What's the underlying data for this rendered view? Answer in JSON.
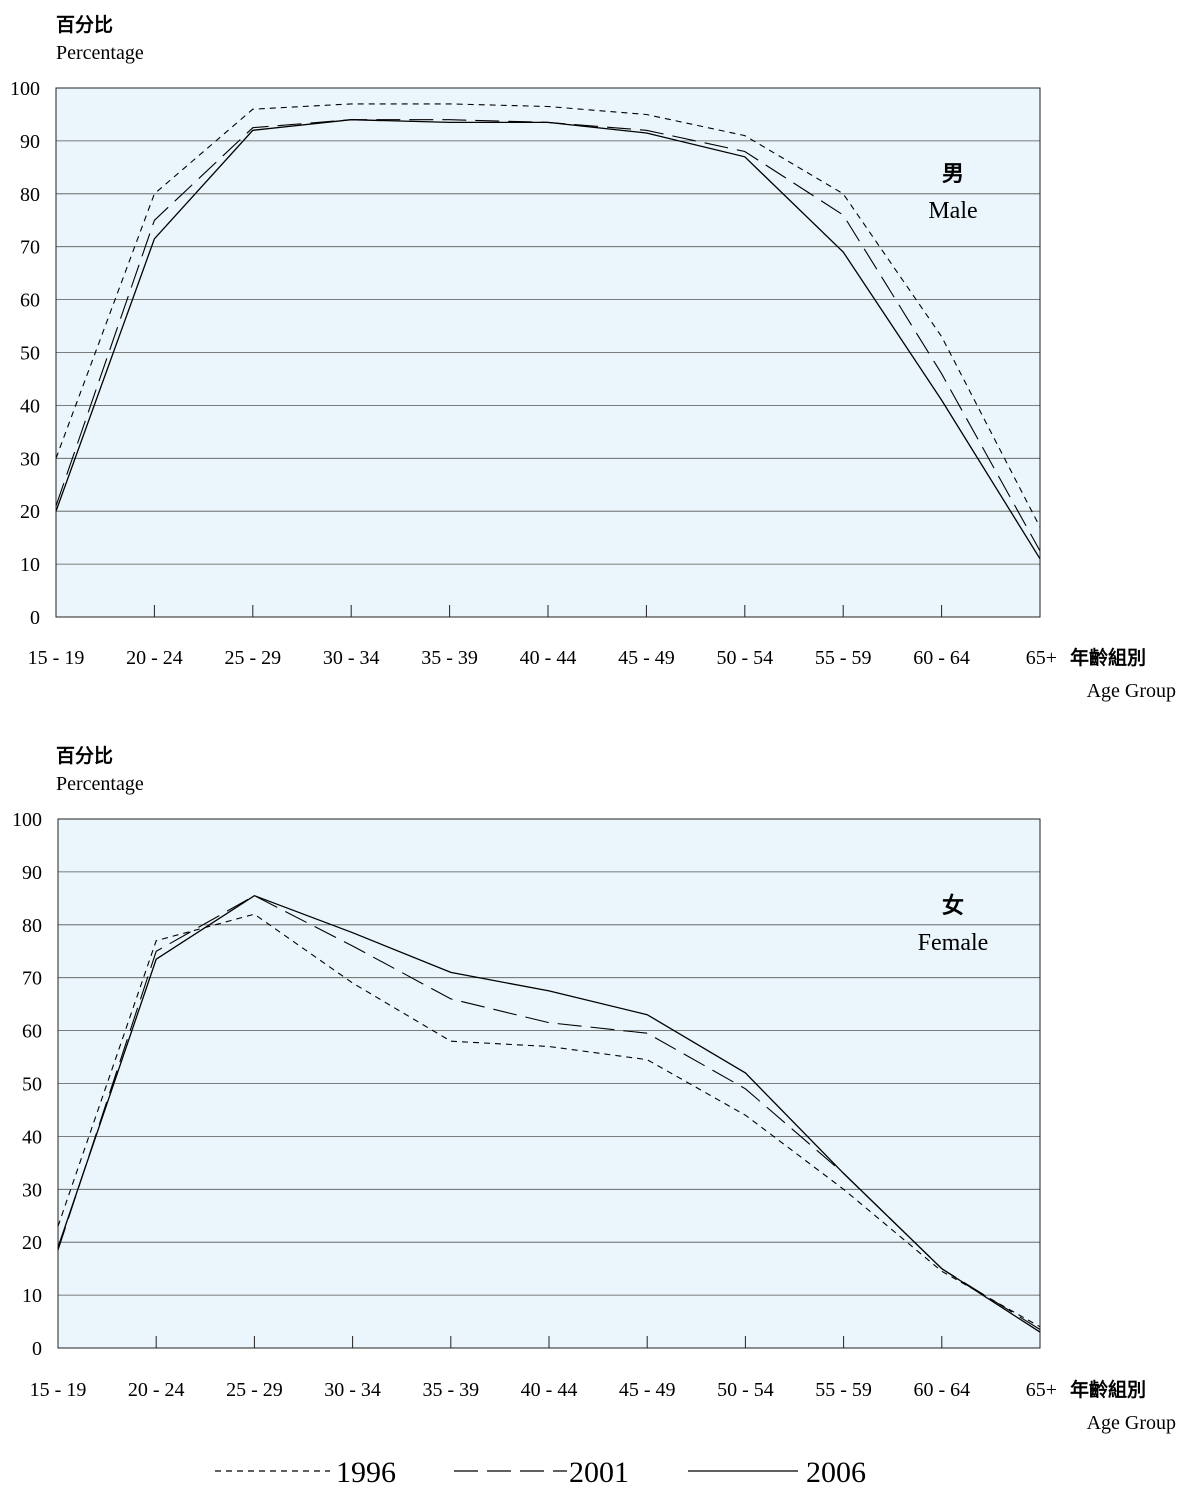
{
  "chart_data": [
    {
      "type": "line",
      "ylabel_zh": "百分比",
      "ylabel_en": "Percentage",
      "xlabel_zh": "年齡組別",
      "xlabel_en": "Age Group",
      "panel_label_zh": "男",
      "panel_label_en": "Male",
      "categories": [
        "15 - 19",
        "20 - 24",
        "25 - 29",
        "30 - 34",
        "35 - 39",
        "40 - 44",
        "45 - 49",
        "50 - 54",
        "55 - 59",
        "60 - 64",
        "65+"
      ],
      "ylim": [
        0,
        100
      ],
      "yticks": [
        "0",
        "10",
        "20",
        "30",
        "40",
        "50",
        "60",
        "70",
        "80",
        "90",
        "100"
      ],
      "grid": true,
      "background": "#eaf6fb",
      "series": [
        {
          "name": "1996",
          "style": "dotted",
          "values": [
            30,
            80,
            96,
            97,
            97,
            96.5,
            95,
            91,
            80,
            53,
            17
          ]
        },
        {
          "name": "2001",
          "style": "dashed",
          "values": [
            21,
            75,
            92.5,
            94,
            94,
            93.5,
            92,
            88,
            76,
            46,
            12.5
          ]
        },
        {
          "name": "2006",
          "style": "solid",
          "values": [
            20,
            71.5,
            92,
            94,
            93.5,
            93.5,
            91.5,
            87,
            69,
            41,
            11
          ]
        }
      ]
    },
    {
      "type": "line",
      "ylabel_zh": "百分比",
      "ylabel_en": "Percentage",
      "xlabel_zh": "年齡組別",
      "xlabel_en": "Age Group",
      "panel_label_zh": "女",
      "panel_label_en": "Female",
      "categories": [
        "15 - 19",
        "20 - 24",
        "25 - 29",
        "30 - 34",
        "35 - 39",
        "40 - 44",
        "45 - 49",
        "50 - 54",
        "55 - 59",
        "60 - 64",
        "65+"
      ],
      "ylim": [
        0,
        100
      ],
      "yticks": [
        "0",
        "10",
        "20",
        "30",
        "40",
        "50",
        "60",
        "70",
        "80",
        "90",
        "100"
      ],
      "grid": true,
      "background": "#eaf6fb",
      "series": [
        {
          "name": "1996",
          "style": "dotted",
          "values": [
            23,
            77,
            82,
            69,
            58,
            57,
            54.5,
            44,
            30,
            14.5,
            4
          ]
        },
        {
          "name": "2001",
          "style": "dashed",
          "values": [
            18.5,
            75,
            85.5,
            76,
            66,
            61.5,
            59.5,
            49,
            33,
            15,
            3.5
          ]
        },
        {
          "name": "2006",
          "style": "solid",
          "values": [
            19,
            73.5,
            85.5,
            78.5,
            71,
            67.5,
            63,
            52,
            33,
            15,
            3
          ]
        }
      ]
    }
  ],
  "legend": [
    {
      "name": "1996",
      "style": "dotted"
    },
    {
      "name": "2001",
      "style": "dashed"
    },
    {
      "name": "2006",
      "style": "solid"
    }
  ]
}
